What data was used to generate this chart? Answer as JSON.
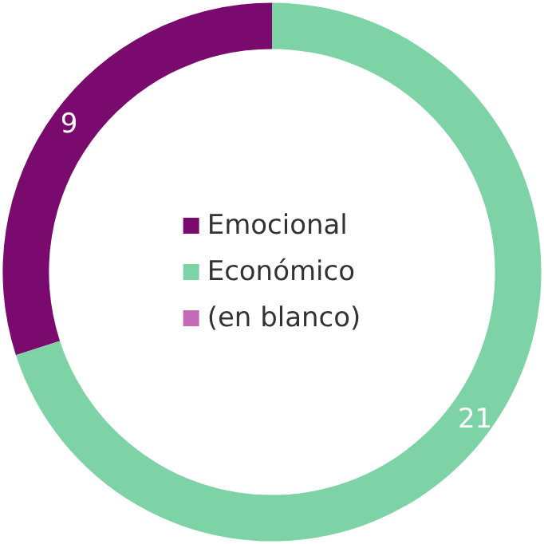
{
  "chart_data": {
    "type": "donut",
    "categories": [
      "Emocional",
      "Económico",
      "(en blanco)"
    ],
    "values": [
      9,
      21,
      0
    ],
    "colors": [
      "#7a0a6e",
      "#7ed3a6",
      "#c46bb8"
    ],
    "value_labels": [
      "9",
      "21",
      null
    ],
    "legend": "center"
  }
}
